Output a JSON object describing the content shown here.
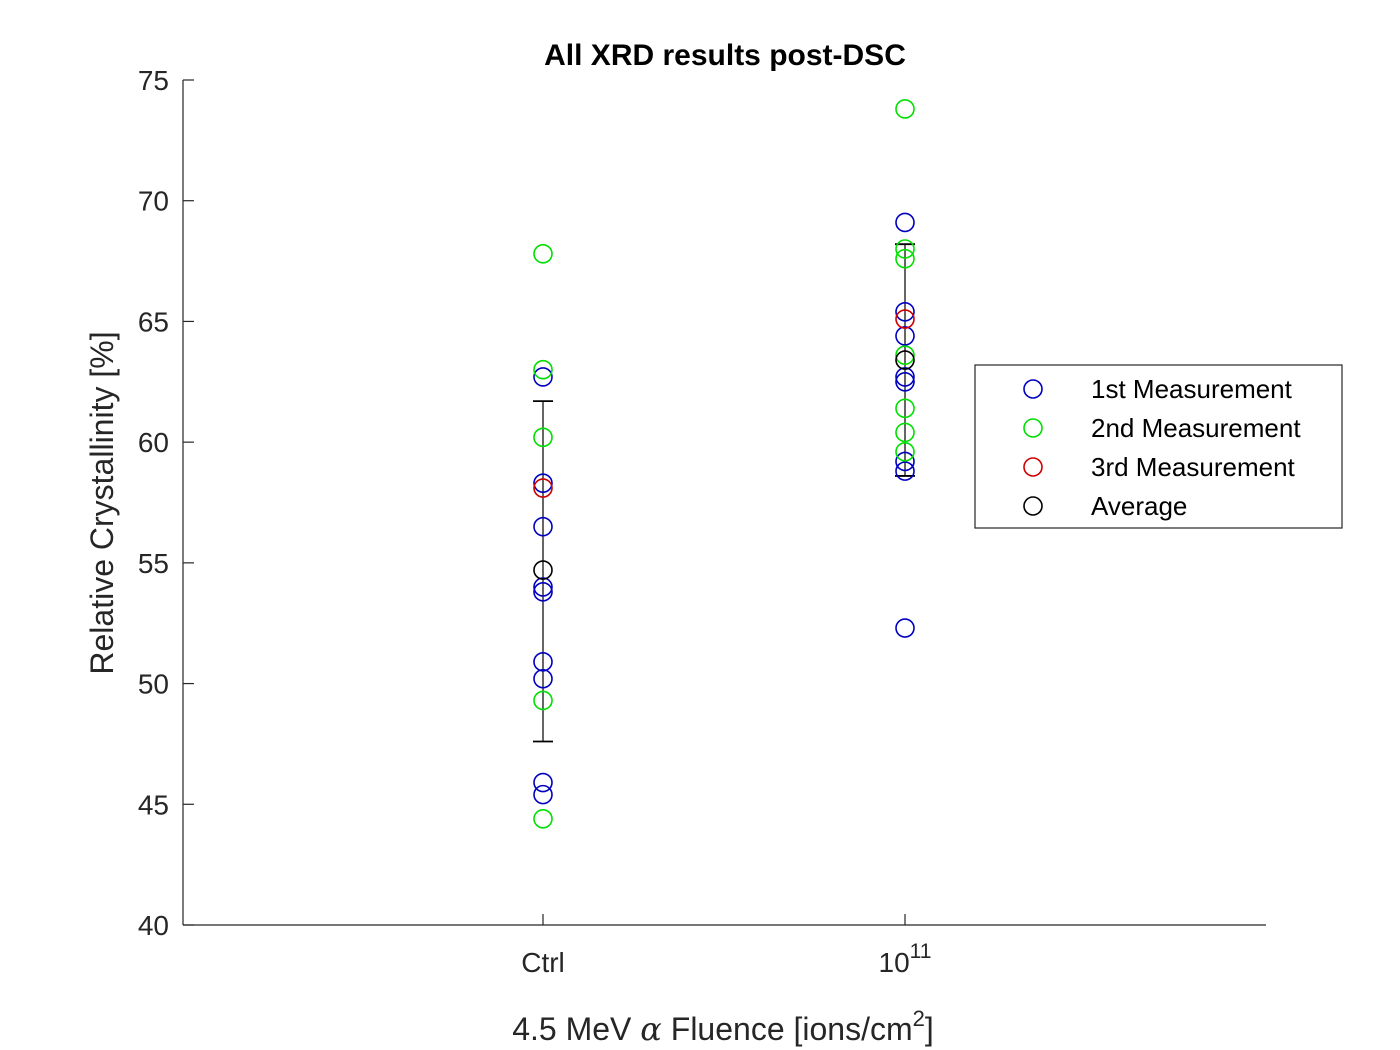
{
  "chart_data": {
    "type": "scatter",
    "title": "All XRD results post-DSC",
    "ylabel": "Relative Crystallinity [%]",
    "xlabel": {
      "prefix": "4.5 MeV ",
      "symbol": "α",
      "middle": " Fluence [ions/cm",
      "sup": "2",
      "suffix": "]"
    },
    "categories": [
      {
        "label": "Ctrl"
      },
      {
        "label": "10",
        "sup": "11"
      }
    ],
    "ylim": [
      40,
      75
    ],
    "yticks": [
      "40",
      "45",
      "50",
      "55",
      "60",
      "65",
      "70",
      "75"
    ],
    "grid": false,
    "legend_position": "right",
    "series": [
      {
        "name": "1st Measurement",
        "color": "#0000c0",
        "points": [
          [
            0,
            62.7
          ],
          [
            0,
            58.3
          ],
          [
            0,
            56.5
          ],
          [
            0,
            54.0
          ],
          [
            0,
            53.8
          ],
          [
            0,
            50.9
          ],
          [
            0,
            50.2
          ],
          [
            0,
            45.9
          ],
          [
            0,
            45.4
          ],
          [
            1,
            69.1
          ],
          [
            1,
            65.4
          ],
          [
            1,
            64.4
          ],
          [
            1,
            62.7
          ],
          [
            1,
            62.5
          ],
          [
            1,
            59.2
          ],
          [
            1,
            58.8
          ],
          [
            1,
            52.3
          ]
        ]
      },
      {
        "name": "2nd Measurement",
        "color": "#00e000",
        "points": [
          [
            0,
            67.8
          ],
          [
            0,
            63.0
          ],
          [
            0,
            60.2
          ],
          [
            0,
            49.3
          ],
          [
            0,
            44.4
          ],
          [
            1,
            73.8
          ],
          [
            1,
            68.0
          ],
          [
            1,
            67.6
          ],
          [
            1,
            63.6
          ],
          [
            1,
            61.4
          ],
          [
            1,
            60.4
          ],
          [
            1,
            59.6
          ]
        ]
      },
      {
        "name": "3rd Measurement",
        "color": "#d00000",
        "points": [
          [
            0,
            58.1
          ],
          [
            1,
            65.1
          ]
        ]
      },
      {
        "name": "Average",
        "color": "#000000",
        "points": [
          [
            0,
            54.7
          ],
          [
            1,
            63.4
          ]
        ]
      }
    ],
    "error_bars": [
      {
        "x": 0,
        "mean": 54.7,
        "low": 47.6,
        "high": 61.7
      },
      {
        "x": 1,
        "mean": 63.4,
        "low": 58.6,
        "high": 68.2
      }
    ]
  }
}
